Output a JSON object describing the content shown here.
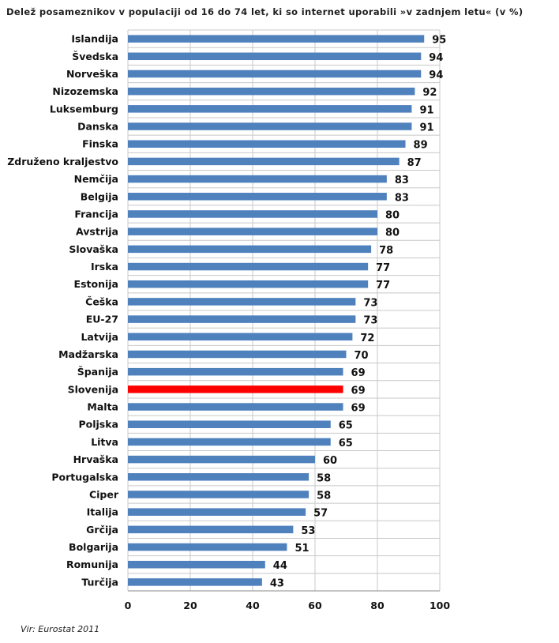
{
  "chart_data": {
    "type": "bar",
    "orientation": "horizontal",
    "title": "Delež posameznikov v populaciji od 16 do 74 let, ki so internet uporabili »v zadnjem letu« (v %)",
    "source": "Vir: Eurostat 2011",
    "categories": [
      "Islandija",
      "Švedska",
      "Norveška",
      "Nizozemska",
      "Luksemburg",
      "Danska",
      "Finska",
      "Združeno kraljestvo",
      "Nemčija",
      "Belgija",
      "Francija",
      "Avstrija",
      "Slovaška",
      "Irska",
      "Estonija",
      "Češka",
      "EU-27",
      "Latvija",
      "Madžarska",
      "Španija",
      "Slovenija",
      "Malta",
      "Poljska",
      "Litva",
      "Hrvaška",
      "Portugalska",
      "Ciper",
      "Italija",
      "Grčija",
      "Bolgarija",
      "Romunija",
      "Turčija"
    ],
    "values": [
      95,
      94,
      94,
      92,
      91,
      91,
      89,
      87,
      83,
      83,
      80,
      80,
      78,
      77,
      77,
      73,
      73,
      72,
      70,
      69,
      69,
      69,
      65,
      65,
      60,
      58,
      58,
      57,
      53,
      51,
      44,
      43
    ],
    "highlight": "Slovenija",
    "xlim": [
      0,
      100
    ],
    "xticks": [
      0,
      20,
      40,
      60,
      80,
      100
    ],
    "grid": "vertical and horizontal",
    "colors": {
      "bar": "#4f81bd",
      "highlight": "#ff0000",
      "grid": "#c8c8c8"
    }
  }
}
